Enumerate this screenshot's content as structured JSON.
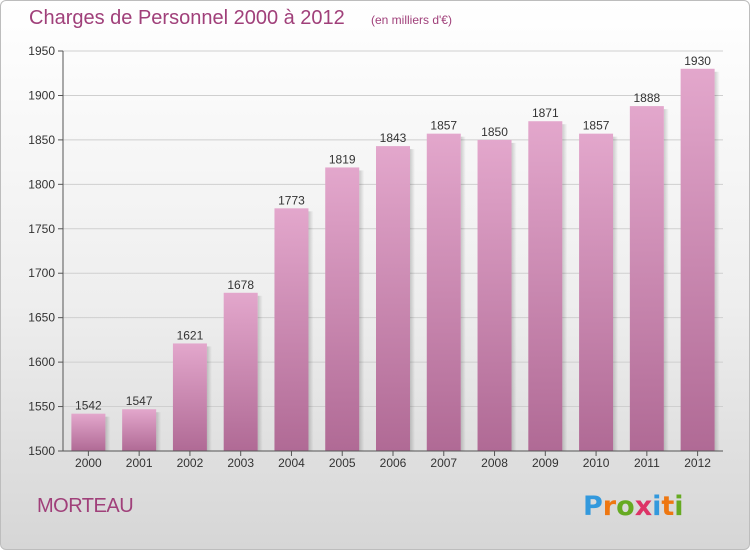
{
  "chart_data": {
    "type": "bar",
    "title": "Charges de Personnel 2000 à 2012",
    "subtitle": "(en milliers d'€)",
    "categories": [
      "2000",
      "2001",
      "2002",
      "2003",
      "2004",
      "2005",
      "2006",
      "2007",
      "2008",
      "2009",
      "2010",
      "2011",
      "2012"
    ],
    "values": [
      1542,
      1547,
      1621,
      1678,
      1773,
      1819,
      1843,
      1857,
      1850,
      1871,
      1857,
      1888,
      1930
    ],
    "ylim": [
      1500,
      1950
    ],
    "yticks": [
      1500,
      1550,
      1600,
      1650,
      1700,
      1750,
      1800,
      1850,
      1900,
      1950
    ],
    "xlabel": "",
    "ylabel": "",
    "grid": true,
    "colors": {
      "bar_top": "#e3a7cc",
      "bar_bottom": "#b06a95",
      "text": "#a0407a"
    }
  },
  "footer": {
    "town": "MORTEAU",
    "logo_letters": [
      "P",
      "r",
      "o",
      "x",
      "i",
      "t",
      "i"
    ],
    "logo_colors": [
      "#3399dd",
      "#ee7711",
      "#66aa22",
      "#dd3366",
      "#3399dd",
      "#ee7711",
      "#66aa22"
    ]
  }
}
